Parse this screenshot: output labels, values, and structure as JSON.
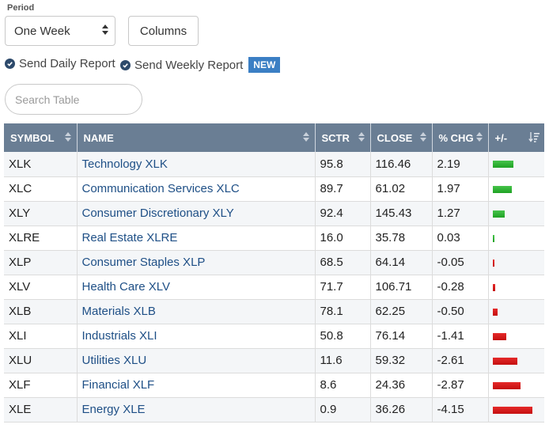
{
  "period": {
    "label": "Period",
    "value": "One Week"
  },
  "columns_button": "Columns",
  "reports": {
    "daily_label": "Send Daily Report",
    "weekly_label": "Send Weekly Report",
    "new_badge": "NEW"
  },
  "search": {
    "placeholder": "Search Table"
  },
  "table": {
    "headers": [
      "SYMBOL",
      "NAME",
      "SCTR",
      "CLOSE",
      "% CHG",
      "+/-"
    ],
    "rows": [
      {
        "symbol": "XLK",
        "name": "Technology XLK",
        "sctr": "95.8",
        "close": "116.46",
        "chg": "2.19"
      },
      {
        "symbol": "XLC",
        "name": "Communication Services XLC",
        "sctr": "89.7",
        "close": "61.02",
        "chg": "1.97"
      },
      {
        "symbol": "XLY",
        "name": "Consumer Discretionary XLY",
        "sctr": "92.4",
        "close": "145.43",
        "chg": "1.27"
      },
      {
        "symbol": "XLRE",
        "name": "Real Estate XLRE",
        "sctr": "16.0",
        "close": "35.78",
        "chg": "0.03"
      },
      {
        "symbol": "XLP",
        "name": "Consumer Staples XLP",
        "sctr": "68.5",
        "close": "64.14",
        "chg": "-0.05"
      },
      {
        "symbol": "XLV",
        "name": "Health Care XLV",
        "sctr": "71.7",
        "close": "106.71",
        "chg": "-0.28"
      },
      {
        "symbol": "XLB",
        "name": "Materials XLB",
        "sctr": "78.1",
        "close": "62.25",
        "chg": "-0.50"
      },
      {
        "symbol": "XLI",
        "name": "Industrials XLI",
        "sctr": "50.8",
        "close": "76.14",
        "chg": "-1.41"
      },
      {
        "symbol": "XLU",
        "name": "Utilities XLU",
        "sctr": "11.6",
        "close": "59.32",
        "chg": "-2.61"
      },
      {
        "symbol": "XLF",
        "name": "Financial XLF",
        "sctr": "8.6",
        "close": "24.36",
        "chg": "-2.87"
      },
      {
        "symbol": "XLE",
        "name": "Energy XLE",
        "sctr": "0.9",
        "close": "36.26",
        "chg": "-4.15"
      }
    ]
  },
  "colors": {
    "header_bg": "#6a7e94",
    "link": "#1e4f86",
    "positive": "#2bb32f",
    "negative": "#d41a1a",
    "badge": "#3b7fc4"
  }
}
